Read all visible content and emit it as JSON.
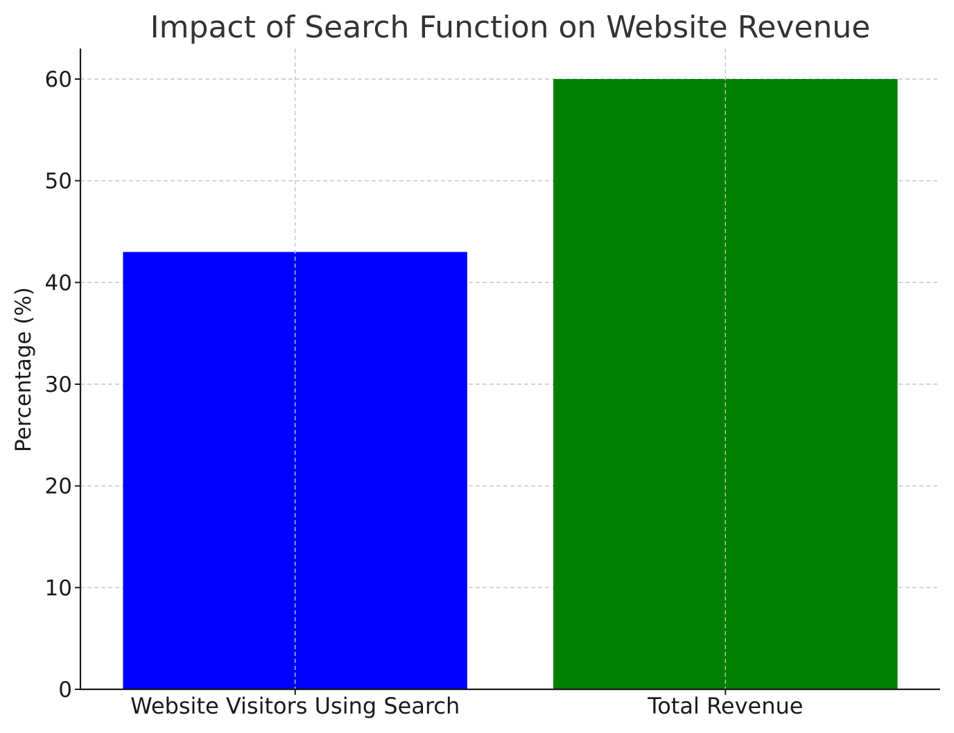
{
  "chart_data": {
    "type": "bar",
    "title": "Impact of Search Function on Website Revenue",
    "xlabel": "",
    "ylabel": "Percentage (%)",
    "categories": [
      "Website Visitors Using Search",
      "Total Revenue"
    ],
    "values": [
      43,
      60
    ],
    "colors": [
      "#0000ff",
      "#008000"
    ],
    "ylim": [
      0,
      63
    ],
    "yticks": [
      0,
      10,
      20,
      30,
      40,
      50,
      60
    ],
    "ytick_labels": [
      "0",
      "10",
      "20",
      "30",
      "40",
      "50",
      "60"
    ],
    "grid": true,
    "legend": "none"
  }
}
